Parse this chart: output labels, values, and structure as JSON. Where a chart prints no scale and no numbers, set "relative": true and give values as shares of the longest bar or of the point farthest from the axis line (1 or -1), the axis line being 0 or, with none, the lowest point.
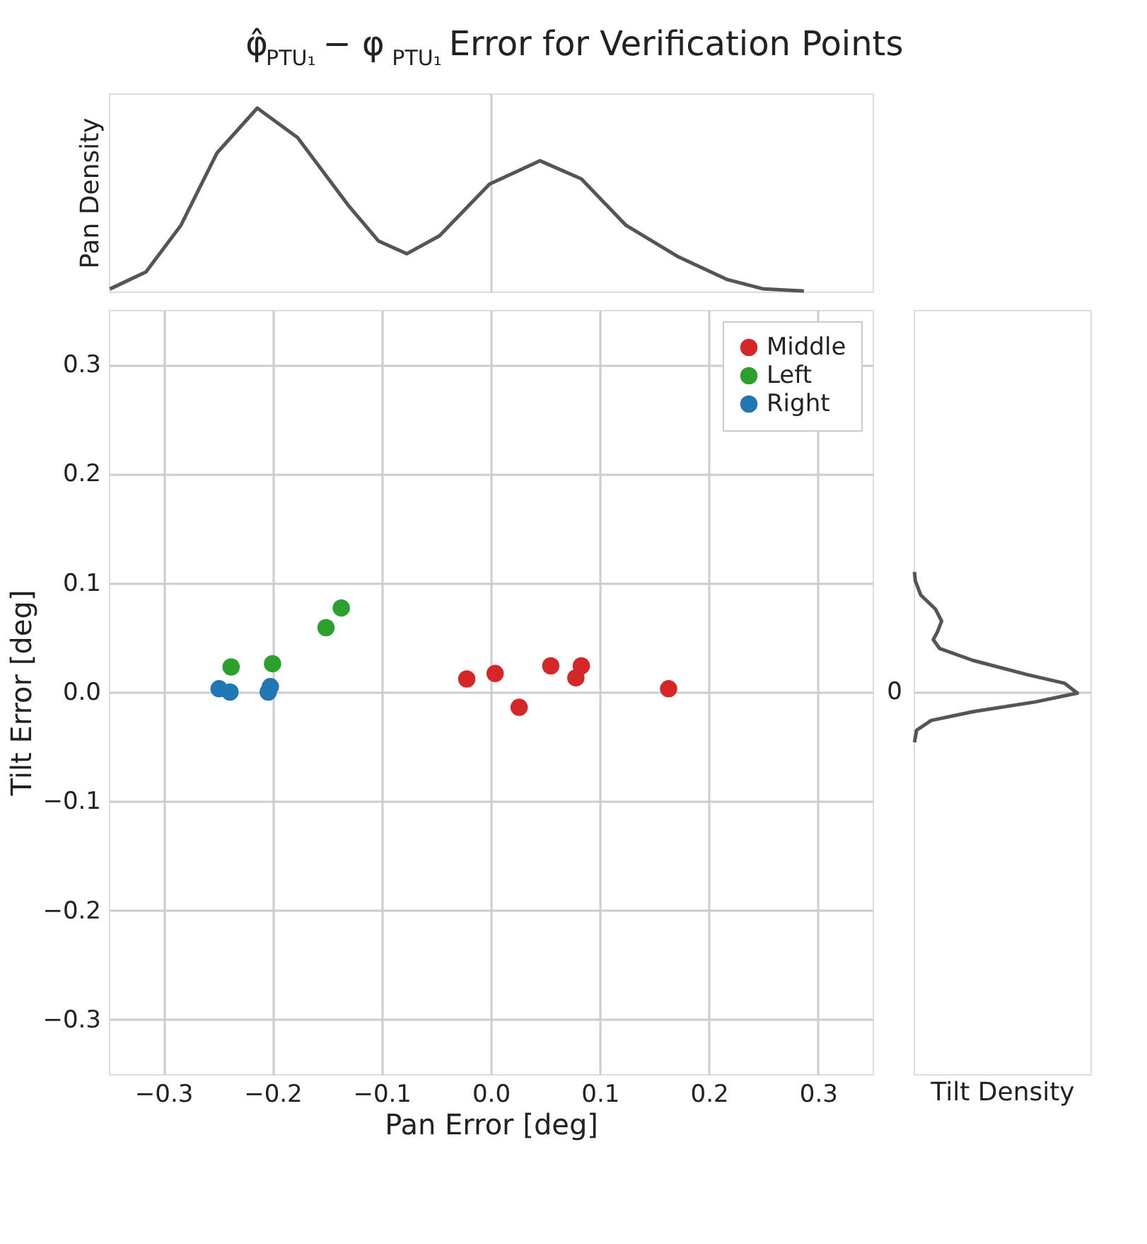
{
  "chart_data": [
    {
      "type": "line",
      "relative": true,
      "title": "φ̂$_{PTU₁}$ − φ$_{PTU₁}$ Error for Verification Points",
      "ylabel": "Pan Density",
      "xlim": [
        -0.35,
        0.35
      ],
      "xticks": [
        {
          "value": 0,
          "label": null
        }
      ],
      "tick_labels": false,
      "grid": "x",
      "series": [
        {
          "color": "#555555",
          "x": [
            -0.349,
            -0.316,
            -0.284,
            -0.251,
            -0.214,
            -0.177,
            -0.131,
            -0.103,
            -0.077,
            -0.047,
            -0.001,
            0.045,
            0.083,
            0.124,
            0.171,
            0.217,
            0.25,
            0.287
          ],
          "values": [
            0.014,
            0.107,
            0.361,
            0.755,
            1.0,
            0.839,
            0.473,
            0.276,
            0.206,
            0.304,
            0.586,
            0.713,
            0.614,
            0.361,
            0.192,
            0.065,
            0.014,
            0.003
          ]
        }
      ]
    },
    {
      "type": "scatter",
      "xlabel": "Pan Error [deg]",
      "ylabel": "Tilt Error [deg]",
      "xlim": [
        -0.35,
        0.35
      ],
      "ylim": [
        -0.35,
        0.35
      ],
      "xticks": [
        -0.3,
        -0.2,
        -0.1,
        {
          "value": 0,
          "label": "0.0"
        },
        0.1,
        0.2,
        0.3
      ],
      "yticks": [
        -0.3,
        -0.2,
        -0.1,
        {
          "value": 0,
          "label": "0.0"
        },
        0.1,
        0.2,
        0.3
      ],
      "grid": true,
      "legend": "top right",
      "marker": "circle",
      "series": [
        {
          "name": "Middle",
          "color": "#d62728",
          "x": [
            -0.022,
            0.004,
            0.026,
            0.055,
            0.083,
            0.078,
            0.163
          ],
          "values": [
            0.012,
            0.017,
            -0.014,
            0.024,
            0.024,
            0.013,
            0.003
          ]
        },
        {
          "name": "Left",
          "color": "#2ca02c",
          "x": [
            -0.238,
            -0.2,
            -0.151,
            -0.137
          ],
          "values": [
            0.023,
            0.026,
            0.059,
            0.077
          ]
        },
        {
          "name": "Right",
          "color": "#1f77b4",
          "x": [
            -0.249,
            -0.239,
            -0.204,
            -0.202
          ],
          "values": [
            0.003,
            0.0,
            0.0,
            0.005
          ]
        }
      ]
    },
    {
      "type": "line",
      "relative": true,
      "orientation": "horizontal",
      "xlabel": "Tilt Density",
      "ylim": [
        -0.35,
        0.35
      ],
      "yticks": [
        {
          "value": 0,
          "label": null
        }
      ],
      "tick_labels": false,
      "grid": "y",
      "annotations": [
        "0"
      ],
      "series": [
        {
          "color": "#555555",
          "x": [
            -0.046,
            -0.035,
            -0.026,
            -0.018,
            -0.009,
            -0.001,
            0.008,
            0.016,
            0.029,
            0.04,
            0.048,
            0.055,
            0.065,
            0.076,
            0.089,
            0.102,
            0.11
          ],
          "values": [
            0.005,
            0.018,
            0.107,
            0.362,
            0.745,
            1.0,
            0.923,
            0.694,
            0.362,
            0.158,
            0.12,
            0.145,
            0.171,
            0.133,
            0.043,
            0.01,
            0.005
          ]
        }
      ]
    }
  ]
}
